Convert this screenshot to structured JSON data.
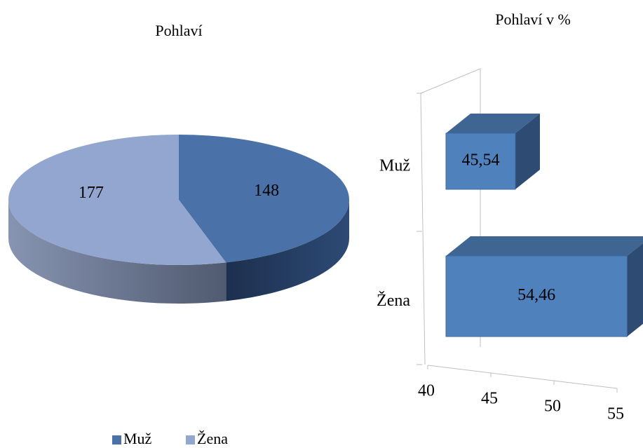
{
  "chart_data": [
    {
      "type": "pie",
      "title": "Pohlaví",
      "categories": [
        "Muž",
        "Žena"
      ],
      "values": [
        148,
        177
      ],
      "colors": [
        "#4a72a8",
        "#93a6d0"
      ],
      "legend": "bottom"
    },
    {
      "type": "bar",
      "title": "Pohlaví  v %",
      "categories": [
        "Muž",
        "Žena"
      ],
      "values": [
        45.54,
        54.46
      ],
      "value_labels": [
        "45,54",
        "54,46"
      ],
      "color": "#4f81bd",
      "orientation": "horizontal",
      "xlim": [
        40,
        55
      ],
      "xticks": [
        40,
        45,
        50,
        55
      ]
    }
  ]
}
